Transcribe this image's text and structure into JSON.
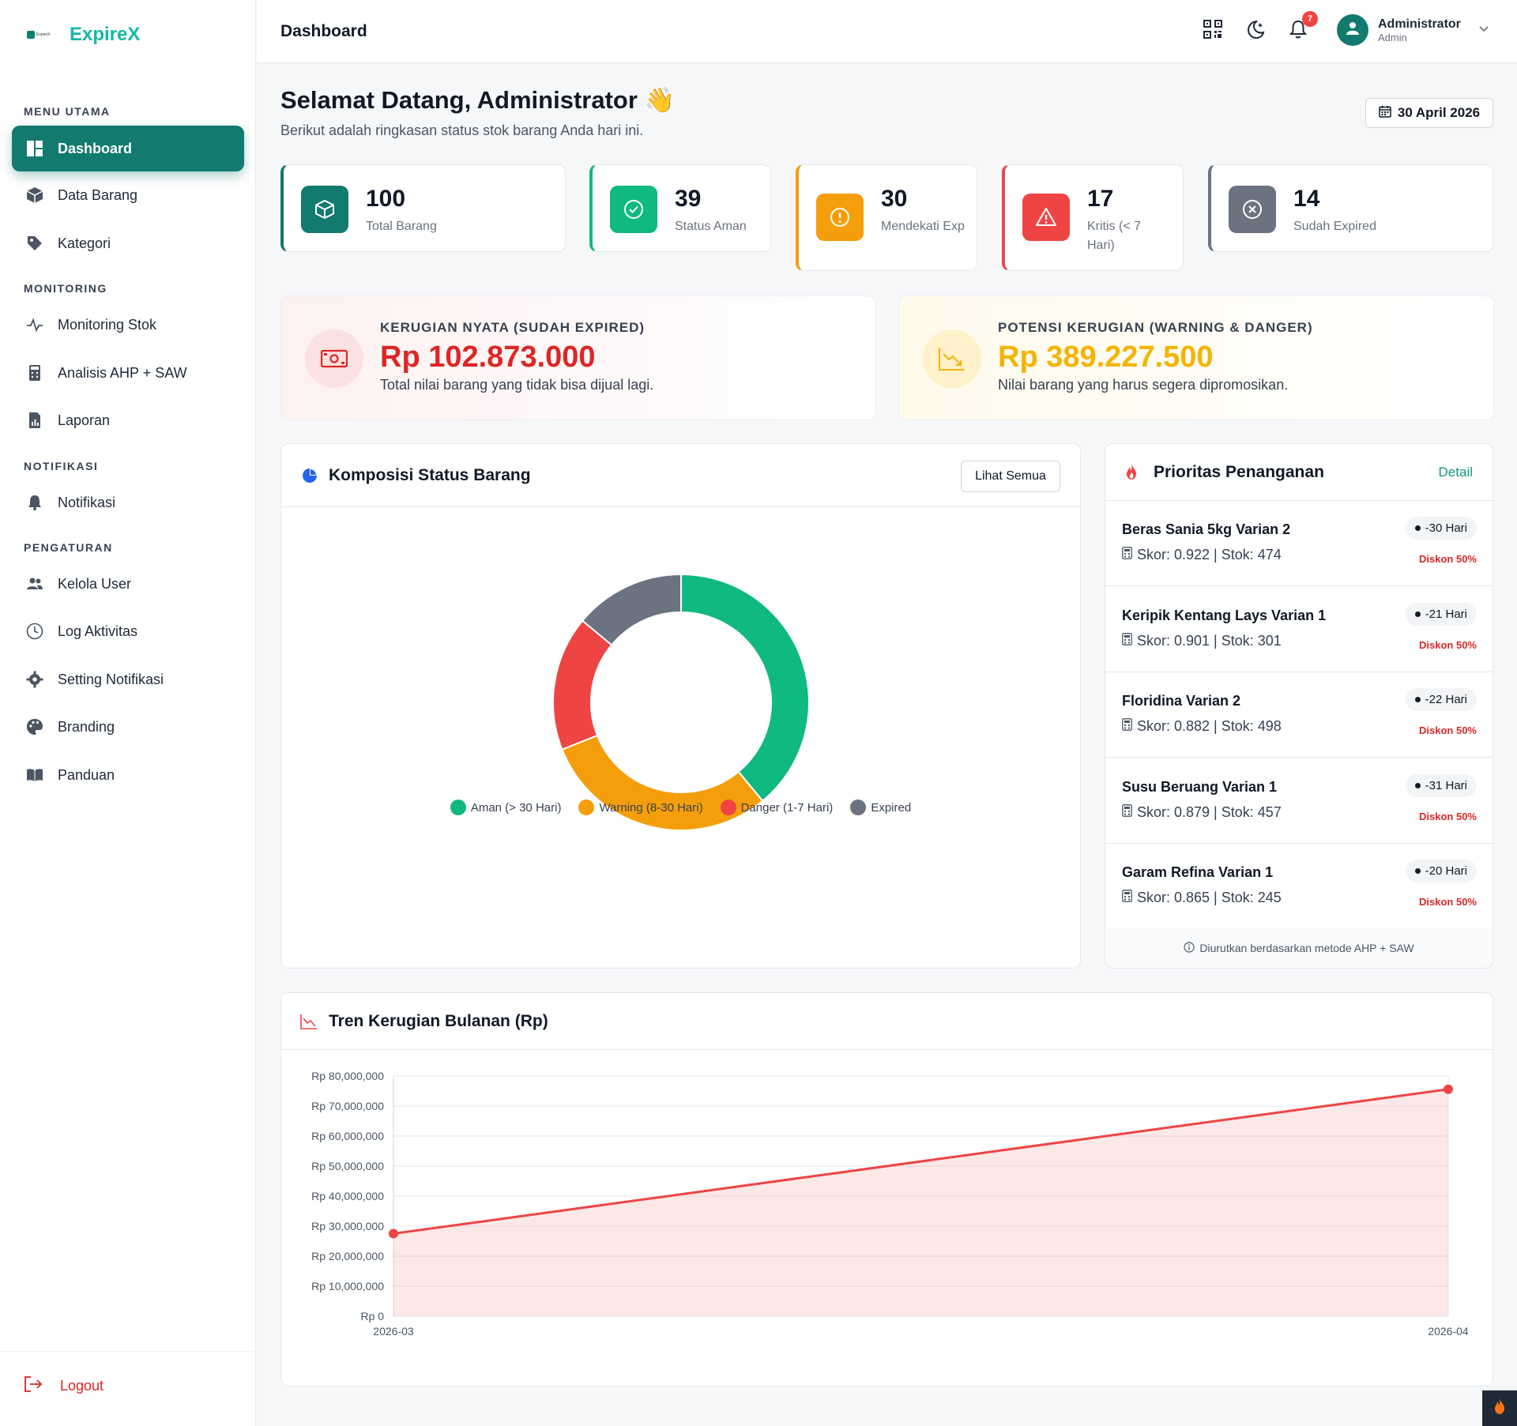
{
  "brand": {
    "name": "ExpireX",
    "logo_text": "ExpireX"
  },
  "sidebar": {
    "sections": {
      "main": "MENU UTAMA",
      "monitoring": "MONITORING",
      "notifikasi": "NOTIFIKASI",
      "pengaturan": "PENGATURAN"
    },
    "items": [
      {
        "label": "Dashboard",
        "icon": "dashboard-icon"
      },
      {
        "label": "Data Barang",
        "icon": "box-icon"
      },
      {
        "label": "Kategori",
        "icon": "tag-icon"
      },
      {
        "label": "Monitoring Stok",
        "icon": "pulse-icon"
      },
      {
        "label": "Analisis AHP + SAW",
        "icon": "calculator-icon"
      },
      {
        "label": "Laporan",
        "icon": "report-icon"
      },
      {
        "label": "Notifikasi",
        "icon": "bell-icon"
      },
      {
        "label": "Kelola User",
        "icon": "users-icon"
      },
      {
        "label": "Log Aktivitas",
        "icon": "clock-icon"
      },
      {
        "label": "Setting Notifikasi",
        "icon": "gear-icon"
      },
      {
        "label": "Branding",
        "icon": "palette-icon"
      },
      {
        "label": "Panduan",
        "icon": "book-icon"
      }
    ],
    "logout": "Logout"
  },
  "topbar": {
    "title": "Dashboard",
    "notif_count": "7",
    "user": {
      "name": "Administrator",
      "role": "Admin"
    }
  },
  "welcome": {
    "title": "Selamat Datang, Administrator",
    "emoji": "👋",
    "subtitle": "Berikut adalah ringkasan status stok barang Anda hari ini.",
    "date": "30 April 2026"
  },
  "stats": [
    {
      "value": "100",
      "label": "Total Barang",
      "color": "#127a6e"
    },
    {
      "value": "39",
      "label": "Status Aman",
      "color": "#10b981"
    },
    {
      "value": "30",
      "label": "Mendekati Exp",
      "color": "#f59e0b"
    },
    {
      "value": "17",
      "label": "Kritis (< 7 Hari)",
      "color": "#ef4444"
    },
    {
      "value": "14",
      "label": "Sudah Expired",
      "color": "#6b7280"
    }
  ],
  "losses": {
    "actual": {
      "title": "KERUGIAN NYATA (SUDAH EXPIRED)",
      "value": "Rp 102.873.000",
      "desc": "Total nilai barang yang tidak bisa dijual lagi.",
      "color": "#dc2626"
    },
    "potential": {
      "title": "POTENSI KERUGIAN (WARNING & DANGER)",
      "value": "Rp 389.227.500",
      "desc": "Nilai barang yang harus segera dipromosikan.",
      "color": "#f5b400"
    }
  },
  "composition": {
    "title": "Komposisi Status Barang",
    "button": "Lihat Semua",
    "legend": [
      {
        "label": "Aman (> 30 Hari)",
        "color": "#10b981"
      },
      {
        "label": "Warning (8-30 Hari)",
        "color": "#f59e0b"
      },
      {
        "label": "Danger (1-7 Hari)",
        "color": "#ef4444"
      },
      {
        "label": "Expired",
        "color": "#6b7280"
      }
    ]
  },
  "priority": {
    "title": "Prioritas Penanganan",
    "detail": "Detail",
    "items": [
      {
        "name": "Beras Sania 5kg Varian 2",
        "meta": "Skor: 0.922 | Stok: 474",
        "days": "-30 Hari",
        "discount": "Diskon 50%"
      },
      {
        "name": "Keripik Kentang Lays Varian 1",
        "meta": "Skor: 0.901 | Stok: 301",
        "days": "-21 Hari",
        "discount": "Diskon 50%"
      },
      {
        "name": "Floridina Varian 2",
        "meta": "Skor: 0.882 | Stok: 498",
        "days": "-22 Hari",
        "discount": "Diskon 50%"
      },
      {
        "name": "Susu Beruang Varian 1",
        "meta": "Skor: 0.879 | Stok: 457",
        "days": "-31 Hari",
        "discount": "Diskon 50%"
      },
      {
        "name": "Garam Refina Varian 1",
        "meta": "Skor: 0.865 | Stok: 245",
        "days": "-20 Hari",
        "discount": "Diskon 50%"
      }
    ],
    "footer": "Diurutkan berdasarkan metode AHP + SAW"
  },
  "chart_data": [
    {
      "type": "pie",
      "categories": [
        "Aman (> 30 Hari)",
        "Warning (8-30 Hari)",
        "Danger (1-7 Hari)",
        "Expired"
      ],
      "values": [
        39,
        30,
        17,
        14
      ],
      "colors": [
        "#10b981",
        "#f59e0b",
        "#ef4444",
        "#6b7280"
      ],
      "legend": "bottom"
    },
    {
      "type": "area",
      "title": "Tren Kerugian Bulanan (Rp)",
      "x": [
        "2026-03",
        "2026-04"
      ],
      "series": [
        {
          "values": [
            27500000,
            75600000
          ],
          "color": "#ef4444"
        }
      ],
      "ylim": [
        0,
        80000000
      ],
      "yticks": [
        "Rp 0",
        "Rp 10,000,000",
        "Rp 20,000,000",
        "Rp 30,000,000",
        "Rp 40,000,000",
        "Rp 50,000,000",
        "Rp 60,000,000",
        "Rp 70,000,000",
        "Rp 80,000,000"
      ],
      "grid": true
    }
  ]
}
